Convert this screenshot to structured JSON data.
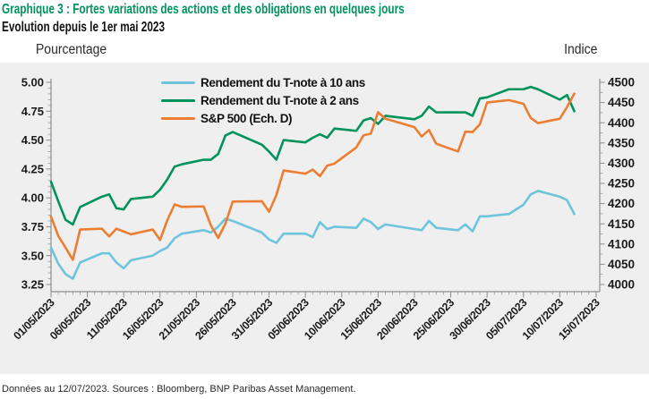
{
  "footer": {
    "note": "Données au 12/07/2023. Sources : Bloomberg, BNP Paribas Asset Management."
  },
  "colors": {
    "title_green": "#00935C",
    "chart_bg": "#EFEFEF",
    "axis": "#8C8C8C",
    "minor_tick": "#9A9A9A",
    "text": "#1A1A1A"
  },
  "chart_data": {
    "type": "line",
    "title": "Graphique 3 : Fortes variations des actions et des obligations en quelques jours",
    "subtitle": "Evolution depuis le 1er mai 2023",
    "grid": false,
    "legend_position": "top-center-left",
    "y_left": {
      "caption": "Pourcentage",
      "min": 3.25,
      "max": 5.0,
      "ticks": [
        "5.00",
        "4.75",
        "4.50",
        "4.25",
        "4.00",
        "3.75",
        "3.50",
        "3.25"
      ],
      "minor_step": 0.05
    },
    "y_right": {
      "caption": "Indice",
      "min": 4000,
      "max": 4500,
      "ticks": [
        "4500",
        "4450",
        "4400",
        "4350",
        "4300",
        "4250",
        "4200",
        "4150",
        "4100",
        "4050",
        "4000"
      ],
      "minor_step": 25
    },
    "x_axis": {
      "start_date": "01/05/2023",
      "end_date": "15/07/2023",
      "tick_labels": [
        "01/05/2023",
        "06/05/2023",
        "11/05/2023",
        "16/05/2023",
        "21/05/2023",
        "26/05/2023",
        "31/05/2023",
        "05/06/2023",
        "10/06/2023",
        "15/06/2023",
        "20/06/2023",
        "25/06/2023",
        "30/06/2023",
        "05/07/2023",
        "10/07/2023",
        "15/07/2023"
      ],
      "tick_step_days": 5,
      "minor_step_days": 1
    },
    "dates": [
      "01/05",
      "02/05",
      "03/05",
      "04/05",
      "05/05",
      "08/05",
      "09/05",
      "10/05",
      "11/05",
      "12/05",
      "15/05",
      "16/05",
      "17/05",
      "18/05",
      "19/05",
      "22/05",
      "23/05",
      "24/05",
      "25/05",
      "26/05",
      "30/05",
      "31/05",
      "01/06",
      "02/06",
      "05/06",
      "06/06",
      "07/06",
      "08/06",
      "09/06",
      "12/06",
      "13/06",
      "14/06",
      "15/06",
      "16/06",
      "20/06",
      "21/06",
      "22/06",
      "23/06",
      "26/06",
      "27/06",
      "28/06",
      "29/06",
      "30/06",
      "03/07",
      "05/07",
      "06/07",
      "07/07",
      "10/07",
      "11/07",
      "12/07"
    ],
    "series": [
      {
        "id": "t10",
        "name": "Rendement du T-note à 10 ans",
        "axis": "left",
        "color": "#6EC4DC",
        "values": [
          3.57,
          3.43,
          3.34,
          3.3,
          3.44,
          3.52,
          3.52,
          3.44,
          3.39,
          3.46,
          3.5,
          3.54,
          3.57,
          3.65,
          3.69,
          3.72,
          3.7,
          3.75,
          3.82,
          3.8,
          3.7,
          3.64,
          3.61,
          3.69,
          3.69,
          3.66,
          3.79,
          3.73,
          3.75,
          3.74,
          3.82,
          3.79,
          3.73,
          3.77,
          3.73,
          3.72,
          3.8,
          3.74,
          3.72,
          3.77,
          3.71,
          3.84,
          3.84,
          3.86,
          3.94,
          4.03,
          4.06,
          4.01,
          3.98,
          3.86
        ]
      },
      {
        "id": "t2",
        "name": "Rendement du T-note à 2 ans",
        "axis": "left",
        "color": "#00935C",
        "values": [
          4.14,
          3.97,
          3.81,
          3.77,
          3.92,
          4.01,
          4.03,
          3.91,
          3.9,
          3.99,
          4.01,
          4.07,
          4.16,
          4.27,
          4.29,
          4.33,
          4.33,
          4.38,
          4.54,
          4.57,
          4.46,
          4.4,
          4.33,
          4.5,
          4.48,
          4.52,
          4.55,
          4.52,
          4.6,
          4.58,
          4.67,
          4.69,
          4.64,
          4.71,
          4.68,
          4.71,
          4.79,
          4.74,
          4.74,
          4.74,
          4.71,
          4.86,
          4.87,
          4.94,
          4.94,
          4.96,
          4.94,
          4.85,
          4.89,
          4.75
        ]
      },
      {
        "id": "spx",
        "name": "S&P 500 (Ech. D)",
        "axis": "right",
        "color": "#ED7D31",
        "values": [
          4168,
          4120,
          4091,
          4061,
          4136,
          4138,
          4119,
          4138,
          4131,
          4124,
          4136,
          4110,
          4159,
          4198,
          4192,
          4193,
          4146,
          4115,
          4151,
          4205,
          4206,
          4180,
          4221,
          4282,
          4274,
          4284,
          4268,
          4294,
          4299,
          4339,
          4369,
          4373,
          4426,
          4410,
          4389,
          4366,
          4382,
          4348,
          4329,
          4378,
          4377,
          4396,
          4450,
          4456,
          4447,
          4412,
          4399,
          4410,
          4439,
          4472
        ]
      }
    ]
  }
}
